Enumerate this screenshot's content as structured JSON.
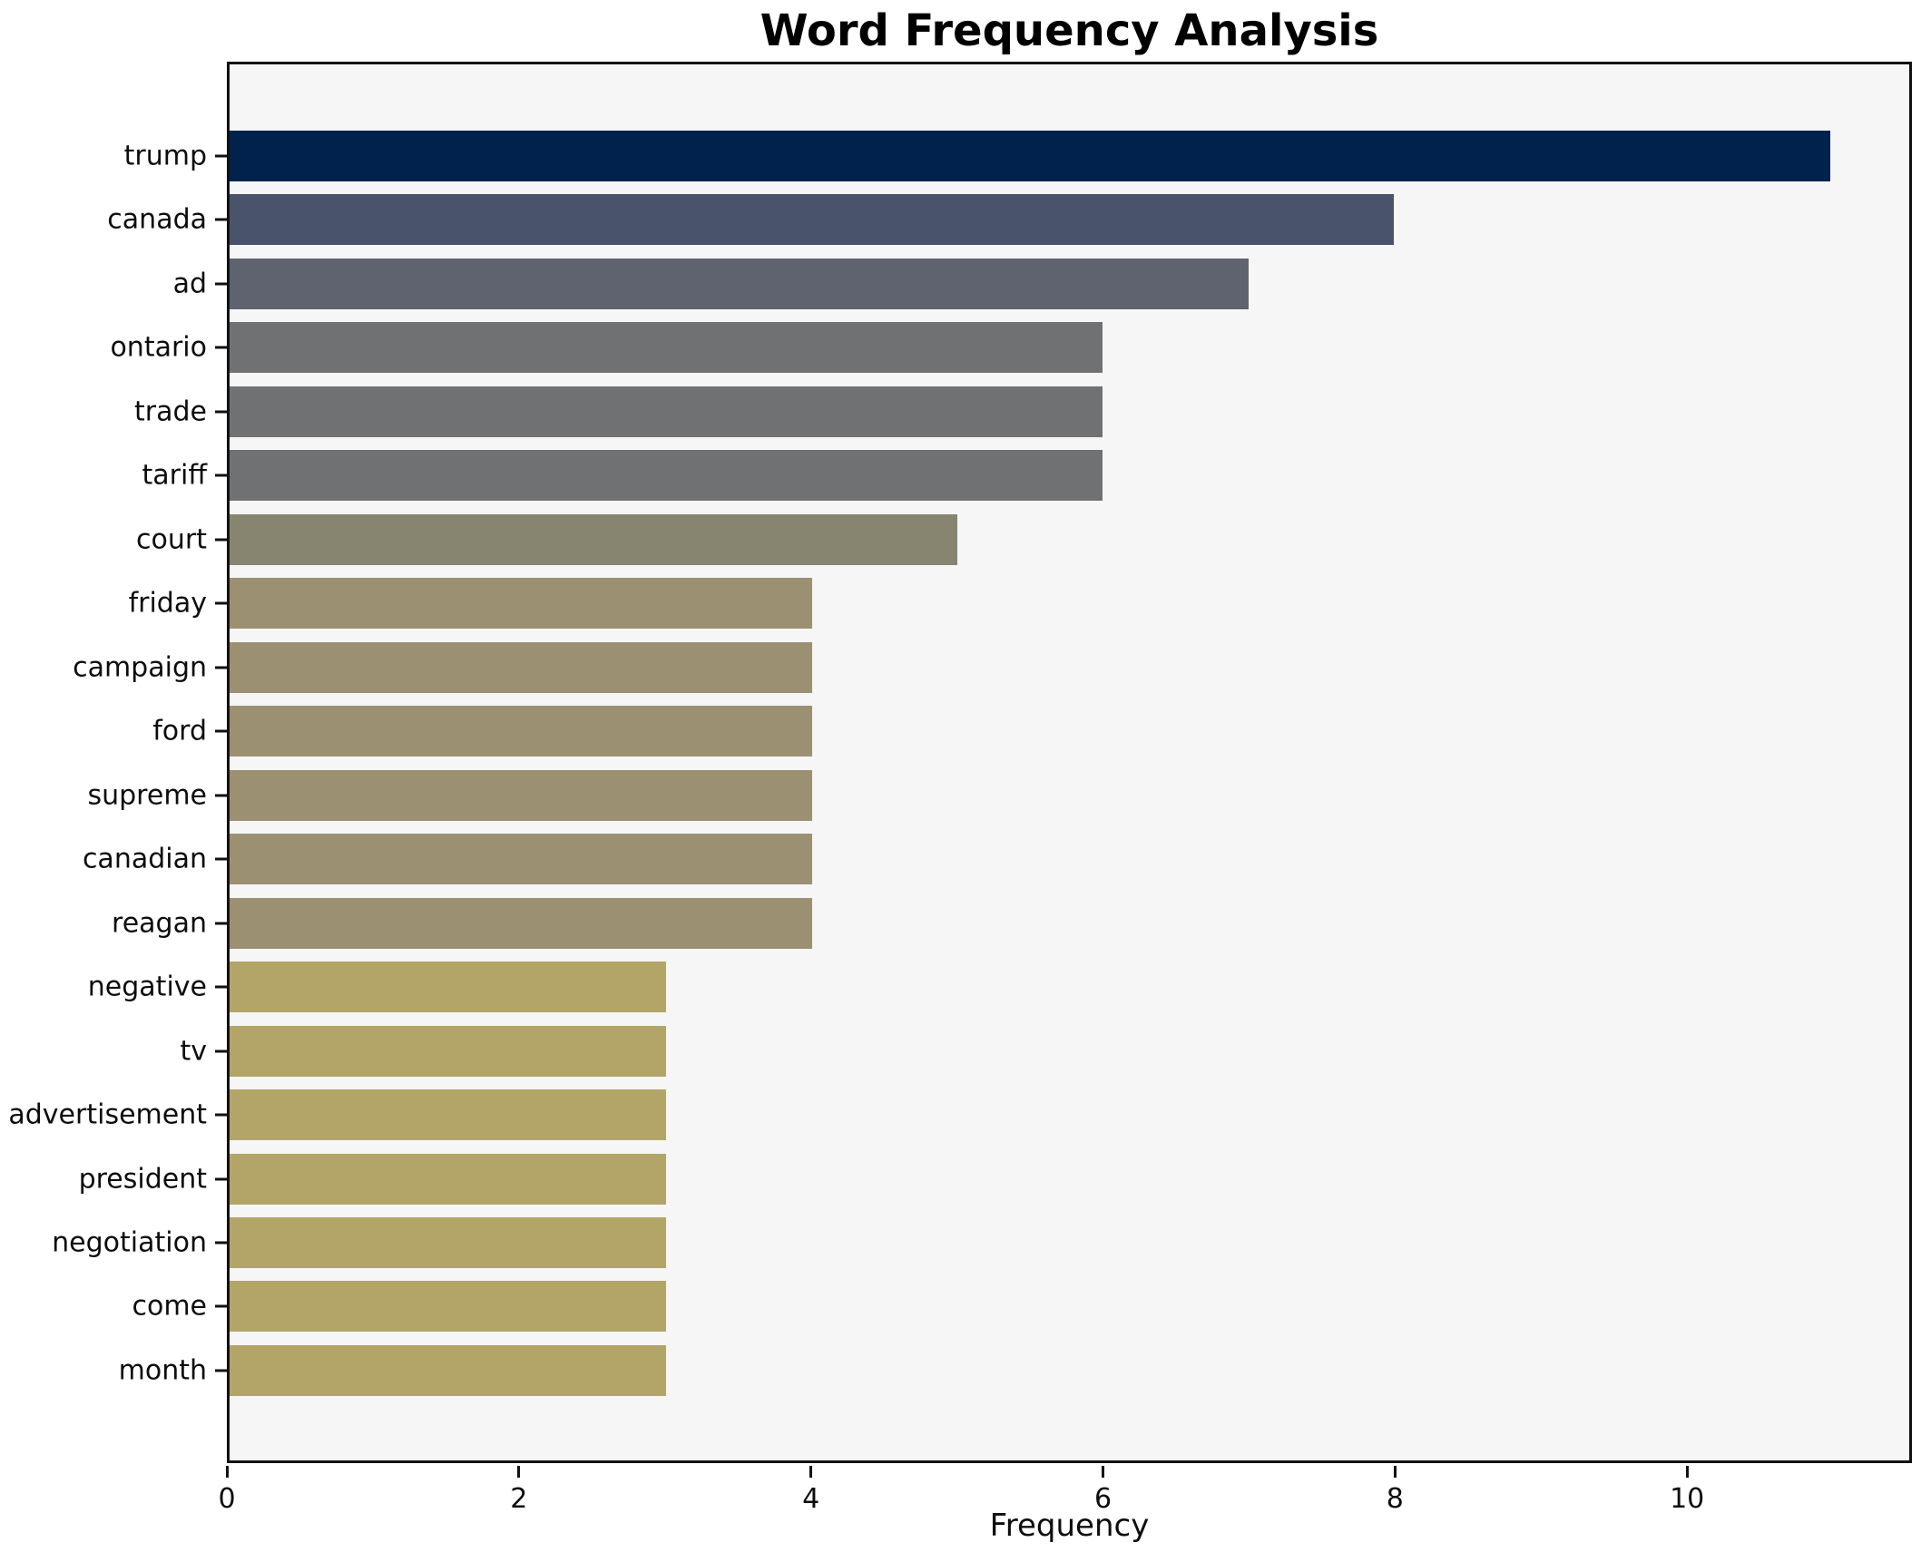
{
  "figure": {
    "title": "Word Frequency Analysis",
    "background_color": "#ffffff",
    "plot_background_color": "#f6f6f7",
    "spine_color": "#121212"
  },
  "chart_data": {
    "type": "bar",
    "orientation": "horizontal",
    "title": "Word Frequency Analysis",
    "xlabel": "Frequency",
    "ylabel": "",
    "categories": [
      "trump",
      "canada",
      "ad",
      "ontario",
      "trade",
      "tariff",
      "court",
      "friday",
      "campaign",
      "ford",
      "supreme",
      "canadian",
      "reagan",
      "negative",
      "tv",
      "advertisement",
      "president",
      "negotiation",
      "come",
      "month"
    ],
    "values": [
      11,
      8,
      7,
      6,
      6,
      6,
      5,
      4,
      4,
      4,
      4,
      4,
      4,
      3,
      3,
      3,
      3,
      3,
      3,
      3
    ],
    "bar_colors": [
      "#00224d",
      "#4a536c",
      "#5f636f",
      "#707173",
      "#707173",
      "#707173",
      "#878570",
      "#9b9172",
      "#9b9172",
      "#9b9172",
      "#9b9172",
      "#9b9172",
      "#9b9172",
      "#b3a567",
      "#b3a567",
      "#b3a567",
      "#b3a567",
      "#b3a567",
      "#b3a567",
      "#b3a567"
    ],
    "xticks": [
      0,
      2,
      4,
      6,
      8,
      10
    ],
    "xlim": [
      0,
      11.54
    ],
    "grid": false,
    "legend": null
  }
}
